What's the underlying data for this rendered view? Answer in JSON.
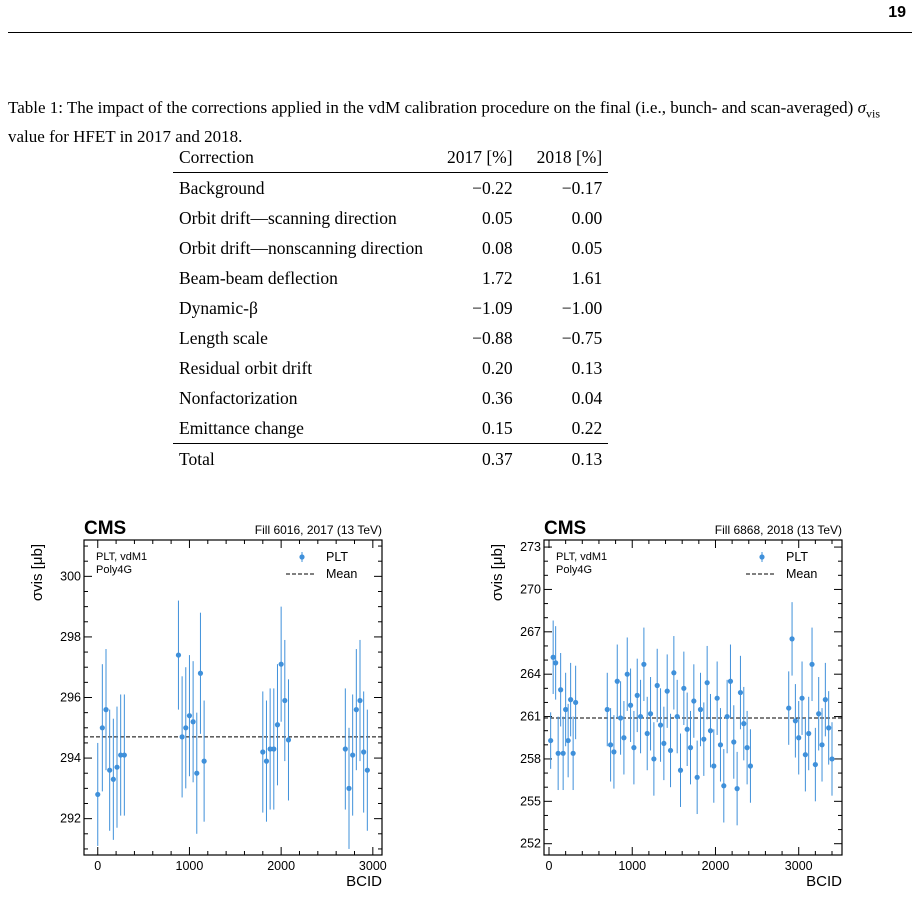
{
  "page_number": "19",
  "caption": {
    "prefix": "Table 1: The impact of the corrections applied in the vdM calibration procedure on the final (i.e., bunch- and scan-averaged) ",
    "sigma": "σ",
    "sub": "vis",
    "suffix": " value for HFET in 2017 and 2018."
  },
  "table": {
    "headers": [
      "Correction",
      "2017 [%]",
      "2018 [%]"
    ],
    "rows": [
      [
        "Background",
        "−0.22",
        "−0.17"
      ],
      [
        "Orbit drift—scanning direction",
        "0.05",
        "0.00"
      ],
      [
        "Orbit drift—nonscanning direction",
        "0.08",
        "0.05"
      ],
      [
        "Beam-beam deflection",
        "1.72",
        "1.61"
      ],
      [
        "Dynamic-β",
        "−1.09",
        "−1.00"
      ],
      [
        "Length scale",
        "−0.88",
        "−0.75"
      ],
      [
        "Residual orbit drift",
        "0.20",
        "0.13"
      ],
      [
        "Nonfactorization",
        "0.36",
        "0.04"
      ],
      [
        "Emittance change",
        "0.15",
        "0.22"
      ]
    ],
    "total": [
      "Total",
      "0.37",
      "0.13"
    ]
  },
  "chart_data": [
    {
      "type": "scatter",
      "title": "CMS",
      "subtitle": "Fill 6016, 2017 (13 TeV)",
      "annotation": [
        "PLT, vdM1",
        "Poly4G"
      ],
      "xlabel": "BCID",
      "ylabel": "σvis [μb]",
      "xlim": [
        -150,
        3100
      ],
      "ylim": [
        290.8,
        301.2
      ],
      "xticks": [
        0,
        1000,
        2000,
        3000
      ],
      "yticks": [
        292,
        294,
        296,
        298,
        300
      ],
      "legend": [
        "PLT",
        "Mean"
      ],
      "legend_position": "top-right",
      "mean": 294.7,
      "series": [
        {
          "name": "PLT",
          "color": "#3f90da",
          "x": [
            0,
            50,
            90,
            130,
            170,
            210,
            250,
            290,
            880,
            920,
            960,
            1000,
            1040,
            1080,
            1120,
            1160,
            1800,
            1840,
            1880,
            1920,
            1960,
            2000,
            2040,
            2080,
            2700,
            2740,
            2780,
            2820,
            2860,
            2900,
            2940
          ],
          "y": [
            292.8,
            295.0,
            295.6,
            293.6,
            293.3,
            293.7,
            294.1,
            294.1,
            297.4,
            294.7,
            295.0,
            295.4,
            295.2,
            293.5,
            296.8,
            293.9,
            294.2,
            293.9,
            294.3,
            294.3,
            295.1,
            297.1,
            295.9,
            294.6,
            294.3,
            293.0,
            294.1,
            295.6,
            295.9,
            294.2,
            293.6
          ],
          "err": [
            1.7,
            2.1,
            2.0,
            2.0,
            2.0,
            2.0,
            2.0,
            2.0,
            1.8,
            2.0,
            2.0,
            2.0,
            2.0,
            2.0,
            2.0,
            2.0,
            2.0,
            2.0,
            2.0,
            2.0,
            2.0,
            1.9,
            2.0,
            2.0,
            2.0,
            2.0,
            2.0,
            2.0,
            2.0,
            2.0,
            2.0
          ]
        }
      ]
    },
    {
      "type": "scatter",
      "title": "CMS",
      "subtitle": "Fill 6868, 2018 (13 TeV)",
      "annotation": [
        "PLT, vdM1",
        "Poly4G"
      ],
      "xlabel": "BCID",
      "ylabel": "σvis [μb]",
      "xlim": [
        -60,
        3520
      ],
      "ylim": [
        251.2,
        273.5
      ],
      "xticks": [
        0,
        1000,
        2000,
        3000
      ],
      "yticks": [
        252,
        255,
        258,
        261,
        264,
        267,
        270,
        273
      ],
      "legend": [
        "PLT",
        "Mean"
      ],
      "legend_position": "top-right",
      "mean": 260.9,
      "series": [
        {
          "name": "PLT",
          "color": "#3f90da",
          "x": [
            20,
            50,
            80,
            110,
            140,
            170,
            200,
            230,
            260,
            290,
            320,
            700,
            740,
            780,
            820,
            860,
            900,
            940,
            980,
            1020,
            1060,
            1100,
            1140,
            1180,
            1220,
            1260,
            1300,
            1340,
            1380,
            1420,
            1460,
            1500,
            1540,
            1580,
            1620,
            1660,
            1700,
            1740,
            1780,
            1820,
            1860,
            1900,
            1940,
            1980,
            2020,
            2060,
            2100,
            2140,
            2180,
            2220,
            2260,
            2300,
            2340,
            2380,
            2420,
            2880,
            2920,
            2960,
            3000,
            3040,
            3080,
            3120,
            3160,
            3200,
            3240,
            3280,
            3320,
            3360,
            3400
          ],
          "y": [
            259.3,
            265.2,
            264.8,
            258.4,
            262.9,
            258.4,
            261.5,
            259.3,
            262.2,
            258.4,
            262.0,
            261.5,
            259.0,
            258.5,
            263.5,
            260.9,
            259.5,
            264.0,
            261.8,
            258.8,
            262.5,
            261.0,
            264.7,
            259.8,
            261.2,
            258.0,
            263.2,
            260.4,
            259.1,
            262.8,
            258.6,
            264.1,
            261.0,
            257.2,
            263.0,
            260.1,
            258.8,
            262.1,
            256.7,
            261.5,
            259.4,
            263.4,
            260.0,
            257.5,
            262.3,
            259.0,
            256.1,
            261.0,
            263.5,
            259.2,
            255.9,
            262.7,
            260.5,
            258.8,
            257.5,
            261.6,
            266.5,
            260.7,
            259.5,
            262.3,
            258.3,
            259.8,
            264.7,
            257.6,
            261.2,
            259.0,
            262.2,
            260.2,
            258.0
          ],
          "err": [
            2.0,
            2.6,
            2.6,
            2.6,
            2.6,
            2.6,
            2.6,
            2.6,
            2.6,
            2.6,
            2.6,
            2.6,
            2.6,
            2.6,
            2.6,
            2.6,
            2.6,
            2.6,
            2.6,
            2.6,
            2.6,
            2.6,
            2.6,
            2.6,
            2.6,
            2.6,
            2.6,
            2.6,
            2.6,
            2.6,
            2.6,
            2.6,
            2.6,
            2.6,
            2.6,
            2.6,
            2.6,
            2.6,
            2.6,
            2.6,
            2.6,
            2.6,
            2.6,
            2.6,
            2.6,
            2.6,
            2.6,
            2.6,
            2.6,
            2.6,
            2.6,
            2.6,
            2.6,
            2.6,
            2.6,
            2.6,
            2.6,
            2.6,
            2.6,
            2.6,
            2.6,
            2.6,
            2.6,
            2.6,
            2.6,
            2.6,
            2.6,
            2.6,
            2.6
          ]
        }
      ]
    }
  ]
}
